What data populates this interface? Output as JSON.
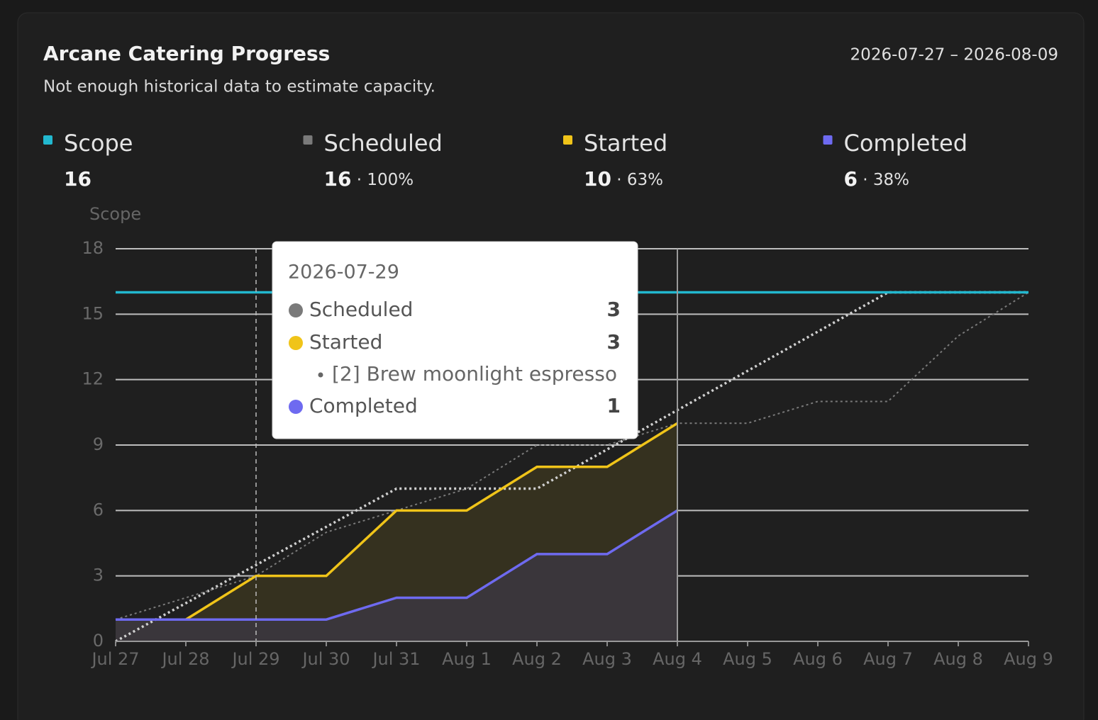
{
  "header": {
    "title": "Arcane Catering Progress",
    "date_range": "2026-07-27 – 2026-08-09",
    "subtitle": "Not enough historical data to estimate capacity."
  },
  "chart_data": {
    "type": "line",
    "y_label": "Scope",
    "categories": [
      "Jul 27",
      "Jul 28",
      "Jul 29",
      "Jul 30",
      "Jul 31",
      "Aug 1",
      "Aug 2",
      "Aug 3",
      "Aug 4",
      "Aug 5",
      "Aug 6",
      "Aug 7",
      "Aug 8",
      "Aug 9"
    ],
    "ylim": [
      0,
      18
    ],
    "yticks": [
      0,
      3,
      6,
      9,
      12,
      15,
      18
    ],
    "grid": true,
    "series": [
      {
        "name": "Scope",
        "color": "#22b8cf",
        "total": 16,
        "style": "solid",
        "values": [
          16,
          16,
          16,
          16,
          16,
          16,
          16,
          16,
          16,
          16,
          16,
          16,
          16,
          16
        ]
      },
      {
        "name": "Scheduled",
        "color": "#7a7a7a",
        "total": 16,
        "share": "100%",
        "style": "dotted",
        "values": [
          1,
          2,
          3,
          5,
          6,
          7,
          9,
          9,
          10,
          10,
          11,
          11,
          14,
          16
        ]
      },
      {
        "name": "Started",
        "color": "#f0c419",
        "total": 10,
        "share": "63%",
        "style": "solid",
        "area": "#35311f",
        "values": [
          1,
          1,
          3,
          3,
          6,
          6,
          8,
          8,
          10,
          null,
          null,
          null,
          null,
          null
        ]
      },
      {
        "name": "Completed",
        "color": "#6e6af0",
        "total": 6,
        "share": "38%",
        "style": "solid",
        "area": "#3a363b",
        "values": [
          1,
          1,
          1,
          1,
          2,
          2,
          4,
          4,
          6,
          null,
          null,
          null,
          null,
          null
        ]
      },
      {
        "color": "#cfcfcf",
        "style": "dotted",
        "values": [
          0,
          1.75,
          3.5,
          5.25,
          7,
          7,
          7,
          8.8,
          10.6,
          12.4,
          14.2,
          16,
          16,
          16
        ]
      }
    ],
    "tooltip": {
      "date": "2026-07-29",
      "item": "[2] Brew moonlight espresso"
    }
  }
}
